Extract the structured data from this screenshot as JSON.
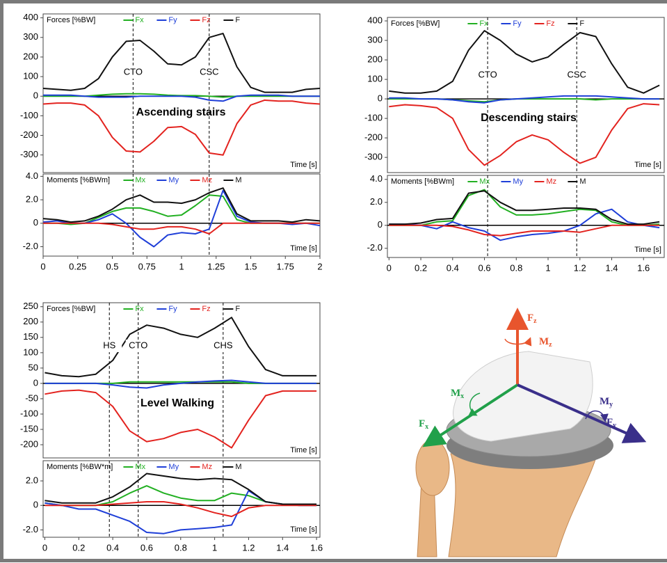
{
  "chart_data": [
    {
      "type": "line",
      "title": "Forces [%BW]",
      "xlabel": "Time [s]",
      "annotation": "Ascending stairs",
      "events": [
        {
          "x": 0.65,
          "label": "CTO"
        },
        {
          "x": 1.2,
          "label": "CSC"
        }
      ],
      "x": [
        0,
        0.1,
        0.2,
        0.3,
        0.4,
        0.5,
        0.6,
        0.7,
        0.8,
        0.9,
        1.0,
        1.1,
        1.2,
        1.3,
        1.4,
        1.5,
        1.6,
        1.7,
        1.8,
        1.9,
        2.0
      ],
      "series": [
        {
          "name": "Fx",
          "color": "#22b022",
          "values": [
            0,
            0,
            0,
            0,
            5,
            10,
            12,
            12,
            10,
            5,
            3,
            3,
            0,
            -5,
            0,
            0,
            0,
            0,
            0,
            0,
            0
          ]
        },
        {
          "name": "Fy",
          "color": "#1f3fd8",
          "values": [
            5,
            5,
            5,
            0,
            -5,
            -5,
            -5,
            0,
            0,
            0,
            0,
            -5,
            -20,
            -25,
            0,
            5,
            5,
            5,
            0,
            0,
            0
          ]
        },
        {
          "name": "Fz",
          "color": "#e3231f",
          "values": [
            -40,
            -35,
            -35,
            -45,
            -100,
            -210,
            -280,
            -285,
            -230,
            -160,
            -155,
            -195,
            -290,
            -300,
            -140,
            -45,
            -20,
            -25,
            -25,
            -35,
            -40
          ]
        },
        {
          "name": "F",
          "color": "#111111",
          "values": [
            40,
            35,
            30,
            40,
            90,
            200,
            280,
            285,
            230,
            165,
            160,
            200,
            300,
            320,
            150,
            45,
            20,
            20,
            20,
            35,
            40
          ]
        }
      ],
      "xlim": [
        0,
        2
      ],
      "ylim": [
        -390,
        420
      ],
      "yticks": [
        400,
        300,
        200,
        100,
        0,
        -100,
        -200,
        -300
      ]
    },
    {
      "type": "line",
      "title": "Moments [%BWm]",
      "xlabel": "Time [s]",
      "event_lines": [
        0.65,
        1.2
      ],
      "x": [
        0,
        0.1,
        0.2,
        0.3,
        0.4,
        0.5,
        0.6,
        0.7,
        0.8,
        0.9,
        1.0,
        1.1,
        1.2,
        1.3,
        1.4,
        1.5,
        1.6,
        1.7,
        1.8,
        1.9,
        2.0
      ],
      "series": [
        {
          "name": "Mx",
          "color": "#22b022",
          "values": [
            0,
            0,
            -0.1,
            0,
            0.5,
            1.0,
            1.3,
            1.3,
            1.0,
            0.6,
            0.7,
            1.5,
            2.4,
            2.3,
            0.3,
            0,
            0,
            0,
            0,
            0,
            0
          ]
        },
        {
          "name": "My",
          "color": "#1f3fd8",
          "values": [
            0.1,
            0.2,
            0,
            0,
            0.3,
            0.8,
            0,
            -1.2,
            -2.0,
            -1.0,
            -0.8,
            -0.9,
            -0.5,
            2.8,
            0.6,
            0.1,
            0,
            0,
            -0.1,
            0,
            -0.2
          ]
        },
        {
          "name": "Mz",
          "color": "#e3231f",
          "values": [
            0,
            0,
            0,
            0,
            0,
            -0.1,
            -0.3,
            -0.5,
            -0.5,
            -0.3,
            -0.3,
            -0.5,
            -0.9,
            0,
            0,
            0,
            0,
            0,
            0,
            0,
            0
          ]
        },
        {
          "name": "M",
          "color": "#111111",
          "values": [
            0.4,
            0.3,
            0.1,
            0.2,
            0.6,
            1.2,
            2.0,
            2.4,
            1.8,
            1.8,
            1.7,
            2.0,
            2.6,
            3.0,
            0.8,
            0.2,
            0.2,
            0.2,
            0.1,
            0.3,
            0.2
          ]
        }
      ],
      "xlim": [
        0,
        2
      ],
      "ylim": [
        -2.8,
        4.2
      ],
      "yticks": [
        {
          "value": 4,
          "label": "4.0"
        },
        {
          "value": 2,
          "label": "2.0"
        },
        0,
        {
          "value": -2,
          "label": "-2.0"
        }
      ],
      "xticks": [
        0,
        0.25,
        0.5,
        0.75,
        1,
        1.25,
        1.5,
        1.75,
        2
      ]
    },
    {
      "type": "line",
      "title": "Forces [%BW]",
      "xlabel": "Time [s]",
      "annotation": "Descending stairs",
      "events": [
        {
          "x": 0.62,
          "label": "CTO"
        },
        {
          "x": 1.18,
          "label": "CSC"
        }
      ],
      "x": [
        0,
        0.1,
        0.2,
        0.3,
        0.4,
        0.5,
        0.6,
        0.7,
        0.8,
        0.9,
        1.0,
        1.1,
        1.2,
        1.3,
        1.4,
        1.5,
        1.6,
        1.7
      ],
      "series": [
        {
          "name": "Fx",
          "color": "#22b022",
          "values": [
            0,
            0,
            0,
            0,
            -5,
            -10,
            -15,
            -5,
            0,
            0,
            0,
            0,
            0,
            -5,
            0,
            0,
            0,
            0
          ]
        },
        {
          "name": "Fy",
          "color": "#1f3fd8",
          "values": [
            5,
            5,
            0,
            0,
            -5,
            -15,
            -20,
            -5,
            0,
            5,
            10,
            15,
            15,
            15,
            10,
            5,
            0,
            0
          ]
        },
        {
          "name": "Fz",
          "color": "#e3231f",
          "values": [
            -40,
            -30,
            -35,
            -45,
            -100,
            -260,
            -340,
            -290,
            -220,
            -185,
            -210,
            -275,
            -330,
            -300,
            -160,
            -50,
            -25,
            -30
          ]
        },
        {
          "name": "F",
          "color": "#111111",
          "values": [
            40,
            30,
            30,
            40,
            90,
            250,
            350,
            300,
            230,
            190,
            215,
            280,
            340,
            320,
            180,
            60,
            30,
            70
          ]
        }
      ],
      "xlim": [
        -0.01,
        1.73
      ],
      "ylim": [
        -378,
        418
      ],
      "yticks": [
        400,
        300,
        200,
        100,
        0,
        -100,
        -200,
        -300
      ]
    },
    {
      "type": "line",
      "title": "Moments [%BWm]",
      "xlabel": "Time [s]",
      "event_lines": [
        0.62,
        1.18
      ],
      "x": [
        0,
        0.1,
        0.2,
        0.3,
        0.4,
        0.5,
        0.6,
        0.7,
        0.8,
        0.9,
        1.0,
        1.1,
        1.2,
        1.3,
        1.4,
        1.5,
        1.6,
        1.7
      ],
      "series": [
        {
          "name": "Mx",
          "color": "#22b022",
          "values": [
            0,
            0,
            0,
            0.3,
            0.4,
            2.6,
            3.1,
            1.6,
            0.9,
            0.9,
            1.0,
            1.2,
            1.4,
            1.3,
            0.3,
            0,
            0,
            0.1
          ]
        },
        {
          "name": "My",
          "color": "#1f3fd8",
          "values": [
            0.1,
            0.1,
            0,
            -0.3,
            0.3,
            -0.2,
            -0.5,
            -1.3,
            -1.0,
            -0.8,
            -0.7,
            -0.5,
            0,
            1.0,
            1.4,
            0.3,
            0,
            -0.2
          ]
        },
        {
          "name": "Mz",
          "color": "#e3231f",
          "values": [
            0,
            0,
            0,
            0,
            -0.1,
            -0.4,
            -0.8,
            -0.9,
            -0.7,
            -0.5,
            -0.5,
            -0.5,
            -0.6,
            -0.3,
            0,
            0,
            0,
            0
          ]
        },
        {
          "name": "M",
          "color": "#111111",
          "values": [
            0.1,
            0.1,
            0.2,
            0.5,
            0.6,
            2.8,
            3.0,
            2.0,
            1.3,
            1.3,
            1.4,
            1.5,
            1.5,
            1.4,
            0.5,
            0.1,
            0.1,
            0.3
          ]
        }
      ],
      "xlim": [
        -0.01,
        1.73
      ],
      "ylim": [
        -2.8,
        4.35
      ],
      "yticks": [
        {
          "value": 4,
          "label": "4.0"
        },
        {
          "value": 2,
          "label": "2.0"
        },
        0,
        {
          "value": -2,
          "label": "-2.0"
        }
      ],
      "xticks": [
        0,
        0.2,
        0.4,
        0.6,
        0.8,
        1,
        1.2,
        1.4,
        1.6
      ]
    },
    {
      "type": "line",
      "title": "Forces [%BW]",
      "xlabel": "Time [s]",
      "annotation": "Level Walking",
      "events": [
        {
          "x": 0.38,
          "label": "HS"
        },
        {
          "x": 0.55,
          "label": "CTO"
        },
        {
          "x": 1.05,
          "label": "CHS"
        }
      ],
      "x": [
        0,
        0.1,
        0.2,
        0.3,
        0.4,
        0.5,
        0.6,
        0.7,
        0.8,
        0.9,
        1.0,
        1.1,
        1.2,
        1.3,
        1.4,
        1.5,
        1.6
      ],
      "series": [
        {
          "name": "Fx",
          "color": "#22b022",
          "values": [
            0,
            0,
            0,
            0,
            0,
            5,
            5,
            5,
            5,
            5,
            5,
            5,
            0,
            0,
            0,
            0,
            0
          ]
        },
        {
          "name": "Fy",
          "color": "#1f3fd8",
          "values": [
            0,
            0,
            0,
            0,
            -5,
            -12,
            -15,
            -5,
            0,
            5,
            8,
            10,
            5,
            0,
            0,
            0,
            0
          ]
        },
        {
          "name": "Fz",
          "color": "#e3231f",
          "values": [
            -35,
            -25,
            -22,
            -30,
            -75,
            -155,
            -190,
            -180,
            -160,
            -150,
            -175,
            -210,
            -120,
            -40,
            -25,
            -25,
            -25
          ]
        },
        {
          "name": "F",
          "color": "#111111",
          "values": [
            35,
            25,
            22,
            30,
            75,
            160,
            190,
            180,
            160,
            150,
            180,
            215,
            120,
            45,
            25,
            25,
            25
          ]
        }
      ],
      "xlim": [
        -0.01,
        1.62
      ],
      "ylim": [
        -243,
        263
      ],
      "yticks": [
        250,
        200,
        150,
        100,
        50,
        0,
        -50,
        -100,
        -150,
        -200
      ]
    },
    {
      "type": "line",
      "title": "Moments [%BW*m]",
      "xlabel": "Time [s]",
      "event_lines": [
        0.38,
        0.55,
        1.05
      ],
      "x": [
        0,
        0.1,
        0.2,
        0.3,
        0.4,
        0.5,
        0.6,
        0.7,
        0.8,
        0.9,
        1.0,
        1.1,
        1.2,
        1.3,
        1.4,
        1.5,
        1.6
      ],
      "series": [
        {
          "name": "Mx",
          "color": "#22b022",
          "values": [
            0.2,
            0,
            0,
            0,
            0.3,
            1.0,
            1.6,
            1.0,
            0.6,
            0.4,
            0.4,
            1.0,
            0.8,
            0.3,
            0.1,
            0,
            0
          ]
        },
        {
          "name": "My",
          "color": "#1f3fd8",
          "values": [
            0.2,
            0,
            -0.3,
            -0.3,
            -0.8,
            -1.3,
            -2.2,
            -2.3,
            -2.0,
            -1.9,
            -1.8,
            -1.6,
            1.2,
            0.3,
            0.1,
            0,
            0
          ]
        },
        {
          "name": "Mz",
          "color": "#e3231f",
          "values": [
            0,
            0,
            0,
            0,
            0.1,
            0.2,
            0.3,
            0.3,
            0.1,
            -0.2,
            -0.6,
            -0.9,
            -0.2,
            0,
            0,
            0,
            0
          ]
        },
        {
          "name": "M",
          "color": "#111111",
          "values": [
            0.4,
            0.2,
            0.2,
            0.2,
            0.7,
            1.5,
            2.6,
            2.4,
            2.2,
            2.1,
            2.2,
            2.1,
            1.3,
            0.3,
            0.1,
            0.1,
            0.1
          ]
        }
      ],
      "xlim": [
        -0.01,
        1.62
      ],
      "ylim": [
        -2.6,
        3.65
      ],
      "yticks": [
        {
          "value": 2,
          "label": "2.0"
        },
        0,
        {
          "value": -2,
          "label": "-2.0"
        }
      ],
      "xticks": [
        0,
        0.2,
        0.4,
        0.6,
        0.8,
        1,
        1.2,
        1.4,
        1.6
      ]
    }
  ],
  "illustration": {
    "labels": [
      {
        "main": "F",
        "sub": "z"
      },
      {
        "main": "M",
        "sub": "z"
      },
      {
        "main": "M",
        "sub": "x"
      },
      {
        "main": "F",
        "sub": "x"
      },
      {
        "main": "M",
        "sub": "y"
      },
      {
        "main": "F",
        "sub": "y"
      }
    ]
  }
}
